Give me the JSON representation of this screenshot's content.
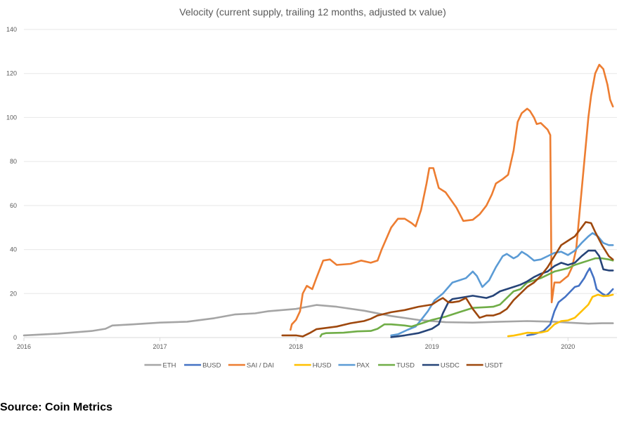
{
  "source_note": "Source: Coin Metrics",
  "colors": {
    "ETH": "#a5a5a5",
    "BUSD": "#4472c4",
    "SAI / DAI": "#ed7d31",
    "HUSD": "#ffc000",
    "PAX": "#5b9bd5",
    "TUSD": "#70ad47",
    "USDC": "#264478",
    "USDT": "#9e480e"
  },
  "chart_data": {
    "type": "line",
    "title": "Velocity (current supply, trailing 12 months, adjusted tx value)",
    "xlabel": "",
    "ylabel": "",
    "xlim": [
      2016.0,
      2020.36
    ],
    "ylim": [
      0,
      140
    ],
    "yticks": [
      0,
      20,
      40,
      60,
      80,
      100,
      120,
      140
    ],
    "xticks": [
      2016,
      2017,
      2018,
      2019,
      2020
    ],
    "grid": "horizontal",
    "legend_position": "bottom",
    "series": [
      {
        "name": "ETH",
        "points": [
          [
            2016.0,
            1
          ],
          [
            2016.25,
            1.8
          ],
          [
            2016.5,
            3
          ],
          [
            2016.6,
            4
          ],
          [
            2016.65,
            5.5
          ],
          [
            2016.8,
            6
          ],
          [
            2017.0,
            6.8
          ],
          [
            2017.2,
            7.2
          ],
          [
            2017.4,
            8.8
          ],
          [
            2017.55,
            10.5
          ],
          [
            2017.7,
            11
          ],
          [
            2017.8,
            12
          ],
          [
            2018.0,
            13
          ],
          [
            2018.15,
            14.8
          ],
          [
            2018.3,
            14
          ],
          [
            2018.5,
            12.2
          ],
          [
            2018.7,
            9.8
          ],
          [
            2018.9,
            8
          ],
          [
            2019.1,
            7
          ],
          [
            2019.3,
            6.8
          ],
          [
            2019.5,
            7.2
          ],
          [
            2019.7,
            7.5
          ],
          [
            2019.9,
            7.2
          ],
          [
            2020.0,
            6.8
          ],
          [
            2020.15,
            6.3
          ],
          [
            2020.25,
            6.5
          ],
          [
            2020.33,
            6.5
          ]
        ]
      },
      {
        "name": "BUSD",
        "points": [
          [
            2019.7,
            1
          ],
          [
            2019.75,
            1.5
          ],
          [
            2019.82,
            3
          ],
          [
            2019.87,
            6
          ],
          [
            2019.9,
            12
          ],
          [
            2019.93,
            16
          ],
          [
            2019.98,
            18.5
          ],
          [
            2020.05,
            23
          ],
          [
            2020.08,
            23.5
          ],
          [
            2020.12,
            27
          ],
          [
            2020.14,
            29.5
          ],
          [
            2020.16,
            31.5
          ],
          [
            2020.19,
            27
          ],
          [
            2020.21,
            22
          ],
          [
            2020.25,
            20
          ],
          [
            2020.28,
            19
          ],
          [
            2020.3,
            20
          ],
          [
            2020.33,
            22
          ]
        ]
      },
      {
        "name": "SAI / DAI",
        "points": [
          [
            2017.96,
            3.5
          ],
          [
            2017.97,
            6
          ],
          [
            2018.0,
            8
          ],
          [
            2018.03,
            12
          ],
          [
            2018.05,
            20
          ],
          [
            2018.08,
            23.5
          ],
          [
            2018.12,
            22
          ],
          [
            2018.15,
            27
          ],
          [
            2018.2,
            35
          ],
          [
            2018.25,
            35.5
          ],
          [
            2018.3,
            33
          ],
          [
            2018.4,
            33.5
          ],
          [
            2018.48,
            35
          ],
          [
            2018.55,
            34
          ],
          [
            2018.6,
            35
          ],
          [
            2018.63,
            40
          ],
          [
            2018.7,
            50
          ],
          [
            2018.75,
            54
          ],
          [
            2018.8,
            54
          ],
          [
            2018.85,
            52
          ],
          [
            2018.88,
            50.5
          ],
          [
            2018.92,
            58
          ],
          [
            2018.96,
            70
          ],
          [
            2018.98,
            77
          ],
          [
            2019.01,
            77
          ],
          [
            2019.05,
            68
          ],
          [
            2019.1,
            66
          ],
          [
            2019.18,
            59
          ],
          [
            2019.23,
            53
          ],
          [
            2019.3,
            53.5
          ],
          [
            2019.35,
            56
          ],
          [
            2019.4,
            60
          ],
          [
            2019.44,
            65
          ],
          [
            2019.47,
            70
          ],
          [
            2019.52,
            72
          ],
          [
            2019.56,
            74
          ],
          [
            2019.6,
            85
          ],
          [
            2019.63,
            98
          ],
          [
            2019.66,
            102
          ],
          [
            2019.7,
            104
          ],
          [
            2019.72,
            103
          ],
          [
            2019.75,
            100
          ],
          [
            2019.77,
            97
          ],
          [
            2019.8,
            97.5
          ],
          [
            2019.85,
            94.5
          ],
          [
            2019.87,
            92
          ],
          [
            2019.88,
            16
          ],
          [
            2019.9,
            25
          ],
          [
            2019.94,
            25
          ],
          [
            2019.98,
            27
          ],
          [
            2020.0,
            28
          ],
          [
            2020.03,
            32
          ],
          [
            2020.06,
            40
          ],
          [
            2020.09,
            60
          ],
          [
            2020.12,
            80
          ],
          [
            2020.15,
            100
          ],
          [
            2020.17,
            110
          ],
          [
            2020.2,
            120
          ],
          [
            2020.23,
            124
          ],
          [
            2020.26,
            122
          ],
          [
            2020.29,
            115
          ],
          [
            2020.31,
            108
          ],
          [
            2020.33,
            105
          ]
        ]
      },
      {
        "name": "HUSD",
        "points": [
          [
            2019.56,
            0.6
          ],
          [
            2019.6,
            0.9
          ],
          [
            2019.65,
            1.5
          ],
          [
            2019.7,
            2.2
          ],
          [
            2019.75,
            2.1
          ],
          [
            2019.8,
            2.3
          ],
          [
            2019.85,
            3
          ],
          [
            2019.9,
            6
          ],
          [
            2019.95,
            7.5
          ],
          [
            2020.0,
            7.8
          ],
          [
            2020.05,
            9
          ],
          [
            2020.1,
            12
          ],
          [
            2020.15,
            15
          ],
          [
            2020.18,
            18.5
          ],
          [
            2020.22,
            19.5
          ],
          [
            2020.26,
            18.8
          ],
          [
            2020.3,
            19
          ],
          [
            2020.33,
            19.5
          ]
        ]
      },
      {
        "name": "PAX",
        "points": [
          [
            2018.7,
            1
          ],
          [
            2018.75,
            1.5
          ],
          [
            2018.82,
            3.5
          ],
          [
            2018.88,
            5
          ],
          [
            2018.92,
            8
          ],
          [
            2018.97,
            12
          ],
          [
            2019.02,
            17
          ],
          [
            2019.08,
            20
          ],
          [
            2019.15,
            25
          ],
          [
            2019.2,
            26
          ],
          [
            2019.25,
            27
          ],
          [
            2019.3,
            30
          ],
          [
            2019.33,
            28
          ],
          [
            2019.37,
            23
          ],
          [
            2019.42,
            26
          ],
          [
            2019.47,
            32
          ],
          [
            2019.52,
            37
          ],
          [
            2019.55,
            38
          ],
          [
            2019.6,
            36
          ],
          [
            2019.63,
            37
          ],
          [
            2019.66,
            39
          ],
          [
            2019.7,
            37.5
          ],
          [
            2019.75,
            35
          ],
          [
            2019.8,
            35.5
          ],
          [
            2019.85,
            37
          ],
          [
            2019.9,
            38.5
          ],
          [
            2019.95,
            39
          ],
          [
            2020.0,
            37.5
          ],
          [
            2020.05,
            39.5
          ],
          [
            2020.1,
            43
          ],
          [
            2020.15,
            46
          ],
          [
            2020.18,
            47.5
          ],
          [
            2020.22,
            46
          ],
          [
            2020.26,
            43
          ],
          [
            2020.3,
            42
          ],
          [
            2020.33,
            42
          ]
        ]
      },
      {
        "name": "TUSD",
        "points": [
          [
            2018.18,
            0.5
          ],
          [
            2018.19,
            1.5
          ],
          [
            2018.22,
            2
          ],
          [
            2018.35,
            2.2
          ],
          [
            2018.45,
            2.8
          ],
          [
            2018.55,
            3
          ],
          [
            2018.6,
            4
          ],
          [
            2018.65,
            6
          ],
          [
            2018.7,
            6
          ],
          [
            2018.8,
            5.5
          ],
          [
            2018.85,
            5
          ],
          [
            2018.9,
            6
          ],
          [
            2018.95,
            7
          ],
          [
            2019.0,
            8
          ],
          [
            2019.1,
            9.5
          ],
          [
            2019.2,
            11.5
          ],
          [
            2019.3,
            13.5
          ],
          [
            2019.4,
            13.8
          ],
          [
            2019.45,
            14
          ],
          [
            2019.5,
            15
          ],
          [
            2019.55,
            18
          ],
          [
            2019.6,
            21
          ],
          [
            2019.65,
            22
          ],
          [
            2019.7,
            25
          ],
          [
            2019.8,
            27
          ],
          [
            2019.9,
            30
          ],
          [
            2020.0,
            31.5
          ],
          [
            2020.05,
            33
          ],
          [
            2020.1,
            34
          ],
          [
            2020.15,
            35
          ],
          [
            2020.2,
            36
          ],
          [
            2020.25,
            36
          ],
          [
            2020.3,
            35.5
          ],
          [
            2020.33,
            35
          ]
        ]
      },
      {
        "name": "USDC",
        "points": [
          [
            2018.7,
            0.2
          ],
          [
            2018.8,
            1
          ],
          [
            2018.9,
            2
          ],
          [
            2018.95,
            3
          ],
          [
            2019.0,
            4
          ],
          [
            2019.05,
            6
          ],
          [
            2019.08,
            11
          ],
          [
            2019.12,
            16
          ],
          [
            2019.15,
            17.5
          ],
          [
            2019.2,
            18
          ],
          [
            2019.3,
            19
          ],
          [
            2019.4,
            18
          ],
          [
            2019.45,
            19
          ],
          [
            2019.5,
            21
          ],
          [
            2019.55,
            22
          ],
          [
            2019.6,
            23
          ],
          [
            2019.65,
            24
          ],
          [
            2019.7,
            25.5
          ],
          [
            2019.75,
            27.5
          ],
          [
            2019.8,
            29
          ],
          [
            2019.85,
            30
          ],
          [
            2019.9,
            32.5
          ],
          [
            2019.95,
            34
          ],
          [
            2020.0,
            33
          ],
          [
            2020.05,
            34
          ],
          [
            2020.1,
            37
          ],
          [
            2020.15,
            39.5
          ],
          [
            2020.2,
            39.5
          ],
          [
            2020.23,
            37
          ],
          [
            2020.26,
            31
          ],
          [
            2020.3,
            30.5
          ],
          [
            2020.33,
            30.5
          ]
        ]
      },
      {
        "name": "USDT",
        "points": [
          [
            2017.9,
            1
          ],
          [
            2018.0,
            1
          ],
          [
            2018.05,
            0.5
          ],
          [
            2018.1,
            2
          ],
          [
            2018.15,
            3.8
          ],
          [
            2018.2,
            4.2
          ],
          [
            2018.3,
            5
          ],
          [
            2018.4,
            6.5
          ],
          [
            2018.5,
            7.5
          ],
          [
            2018.55,
            8.5
          ],
          [
            2018.6,
            10
          ],
          [
            2018.7,
            11.5
          ],
          [
            2018.8,
            12.5
          ],
          [
            2018.9,
            14
          ],
          [
            2019.0,
            15
          ],
          [
            2019.05,
            17
          ],
          [
            2019.08,
            18
          ],
          [
            2019.12,
            16
          ],
          [
            2019.15,
            16
          ],
          [
            2019.2,
            16.5
          ],
          [
            2019.25,
            18
          ],
          [
            2019.3,
            13
          ],
          [
            2019.35,
            9
          ],
          [
            2019.4,
            10
          ],
          [
            2019.45,
            10
          ],
          [
            2019.5,
            11
          ],
          [
            2019.55,
            13
          ],
          [
            2019.6,
            17
          ],
          [
            2019.65,
            20
          ],
          [
            2019.7,
            23
          ],
          [
            2019.75,
            25
          ],
          [
            2019.8,
            28
          ],
          [
            2019.85,
            32
          ],
          [
            2019.9,
            37
          ],
          [
            2019.95,
            42
          ],
          [
            2020.0,
            44
          ],
          [
            2020.05,
            46
          ],
          [
            2020.1,
            50
          ],
          [
            2020.13,
            52.5
          ],
          [
            2020.17,
            52
          ],
          [
            2020.2,
            48
          ],
          [
            2020.25,
            42
          ],
          [
            2020.3,
            37
          ],
          [
            2020.33,
            35.5
          ]
        ]
      }
    ]
  }
}
